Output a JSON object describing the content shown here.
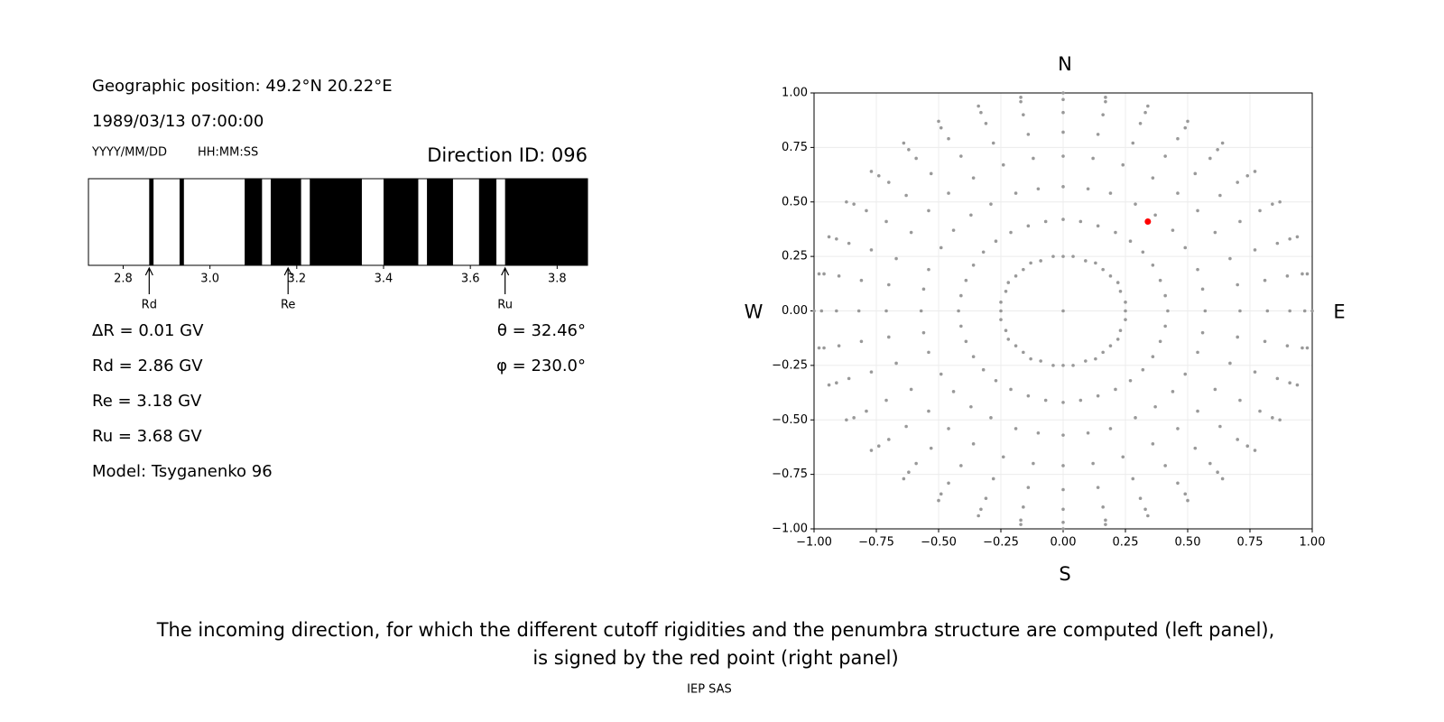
{
  "left_panel": {
    "position": "Geographic position: 49.2°N 20.22°E",
    "datetime": "1989/03/13 07:00:00",
    "date_format": "YYYY/MM/DD",
    "time_format": "HH:MM:SS",
    "direction_id": "Direction ID: 096",
    "lines": [
      "ΔR = 0.01 GV",
      "Rd = 2.86 GV",
      "Re = 3.18 GV",
      "Ru = 3.68 GV",
      "Model: Tsyganenko 96"
    ],
    "angles": [
      "θ = 32.46°",
      "φ = 230.0°"
    ]
  },
  "penumbra": {
    "xlim": [
      2.72,
      3.87
    ],
    "xticks": [
      2.8,
      {
        "value": 3,
        "label": "3.0"
      },
      3.2,
      3.4,
      3.6,
      3.8
    ],
    "color": "#000000",
    "intervals": [
      [
        2.86,
        2.87
      ],
      [
        2.93,
        2.94
      ],
      [
        3.08,
        3.12
      ],
      [
        3.14,
        3.21
      ],
      [
        3.23,
        3.35
      ],
      [
        3.4,
        3.48
      ],
      [
        3.5,
        3.56
      ],
      [
        3.62,
        3.66
      ],
      [
        3.68,
        3.87
      ]
    ],
    "markers": [
      {
        "label": "Rd",
        "value": 2.86
      },
      {
        "label": "Re",
        "value": 3.18
      },
      {
        "label": "Ru",
        "value": 3.68
      }
    ]
  },
  "chart_data": {
    "type": "scatter",
    "xlim": [
      -1,
      1
    ],
    "ylim": [
      -1,
      1
    ],
    "grid": true,
    "color": "#999999",
    "xticks": [
      {
        "value": -1,
        "label": "−1.00"
      },
      {
        "value": -0.75,
        "label": "−0.75"
      },
      {
        "value": -0.5,
        "label": "−0.50"
      },
      {
        "value": -0.25,
        "label": "−0.25"
      },
      {
        "value": 0,
        "label": "0.00"
      },
      {
        "value": 0.25,
        "label": "0.25"
      },
      {
        "value": 0.5,
        "label": "0.50"
      },
      {
        "value": 0.75,
        "label": "0.75"
      },
      {
        "value": 1,
        "label": "1.00"
      }
    ],
    "yticks": [
      {
        "value": -1,
        "label": "−1.00"
      },
      {
        "value": -0.75,
        "label": "−0.75"
      },
      {
        "value": -0.5,
        "label": "−0.50"
      },
      {
        "value": -0.25,
        "label": "−0.25"
      },
      {
        "value": 0,
        "label": "0.00"
      },
      {
        "value": 0.25,
        "label": "0.25"
      },
      {
        "value": 0.5,
        "label": "0.50"
      },
      {
        "value": 0.75,
        "label": "0.75"
      },
      {
        "value": 1,
        "label": "1.00"
      }
    ],
    "compass": {
      "north": "N",
      "south": "S",
      "west": "W",
      "east": "E"
    },
    "highlight": {
      "x": 0.34,
      "y": 0.41,
      "color": "#ff0000"
    },
    "points": [
      [
        0,
        0
      ],
      [
        0.25,
        0
      ],
      [
        0.25,
        0.04
      ],
      [
        0.23,
        0.09
      ],
      [
        0.22,
        0.13
      ],
      [
        0.19,
        0.16
      ],
      [
        0.16,
        0.19
      ],
      [
        0.13,
        0.22
      ],
      [
        0.09,
        0.23
      ],
      [
        0.04,
        0.25
      ],
      [
        0,
        0.25
      ],
      [
        -0.04,
        0.25
      ],
      [
        -0.09,
        0.23
      ],
      [
        -0.13,
        0.22
      ],
      [
        -0.16,
        0.19
      ],
      [
        -0.19,
        0.16
      ],
      [
        -0.22,
        0.13
      ],
      [
        -0.23,
        0.09
      ],
      [
        -0.25,
        0.04
      ],
      [
        -0.25,
        0
      ],
      [
        -0.25,
        -0.04
      ],
      [
        -0.23,
        -0.09
      ],
      [
        -0.22,
        -0.13
      ],
      [
        -0.19,
        -0.16
      ],
      [
        -0.16,
        -0.19
      ],
      [
        -0.13,
        -0.22
      ],
      [
        -0.09,
        -0.23
      ],
      [
        -0.04,
        -0.25
      ],
      [
        0,
        -0.25
      ],
      [
        0.04,
        -0.25
      ],
      [
        0.09,
        -0.23
      ],
      [
        0.13,
        -0.22
      ],
      [
        0.16,
        -0.19
      ],
      [
        0.19,
        -0.16
      ],
      [
        0.22,
        -0.13
      ],
      [
        0.23,
        -0.09
      ],
      [
        0.25,
        -0.04
      ],
      [
        0.42,
        0
      ],
      [
        0.41,
        0.07
      ],
      [
        0.39,
        0.14
      ],
      [
        0.36,
        0.21
      ],
      [
        0.32,
        0.27
      ],
      [
        0.27,
        0.32
      ],
      [
        0.21,
        0.36
      ],
      [
        0.14,
        0.39
      ],
      [
        0.07,
        0.41
      ],
      [
        0,
        0.42
      ],
      [
        -0.07,
        0.41
      ],
      [
        -0.14,
        0.39
      ],
      [
        -0.21,
        0.36
      ],
      [
        -0.27,
        0.32
      ],
      [
        -0.32,
        0.27
      ],
      [
        -0.36,
        0.21
      ],
      [
        -0.39,
        0.14
      ],
      [
        -0.41,
        0.07
      ],
      [
        -0.42,
        0
      ],
      [
        -0.41,
        -0.07
      ],
      [
        -0.39,
        -0.14
      ],
      [
        -0.36,
        -0.21
      ],
      [
        -0.32,
        -0.27
      ],
      [
        -0.27,
        -0.32
      ],
      [
        -0.21,
        -0.36
      ],
      [
        -0.14,
        -0.39
      ],
      [
        -0.07,
        -0.41
      ],
      [
        0,
        -0.42
      ],
      [
        0.07,
        -0.41
      ],
      [
        0.14,
        -0.39
      ],
      [
        0.21,
        -0.36
      ],
      [
        0.27,
        -0.32
      ],
      [
        0.32,
        -0.27
      ],
      [
        0.36,
        -0.21
      ],
      [
        0.39,
        -0.14
      ],
      [
        0.41,
        -0.07
      ],
      [
        0.57,
        0
      ],
      [
        0.56,
        0.1
      ],
      [
        0.54,
        0.19
      ],
      [
        0.49,
        0.29
      ],
      [
        0.44,
        0.37
      ],
      [
        0.37,
        0.44
      ],
      [
        0.29,
        0.49
      ],
      [
        0.19,
        0.54
      ],
      [
        0.1,
        0.56
      ],
      [
        0,
        0.57
      ],
      [
        -0.1,
        0.56
      ],
      [
        -0.19,
        0.54
      ],
      [
        -0.29,
        0.49
      ],
      [
        -0.37,
        0.44
      ],
      [
        -0.44,
        0.37
      ],
      [
        -0.49,
        0.29
      ],
      [
        -0.54,
        0.19
      ],
      [
        -0.56,
        0.1
      ],
      [
        -0.57,
        0
      ],
      [
        -0.56,
        -0.1
      ],
      [
        -0.54,
        -0.19
      ],
      [
        -0.49,
        -0.29
      ],
      [
        -0.44,
        -0.37
      ],
      [
        -0.37,
        -0.44
      ],
      [
        -0.29,
        -0.49
      ],
      [
        -0.19,
        -0.54
      ],
      [
        -0.1,
        -0.56
      ],
      [
        0,
        -0.57
      ],
      [
        0.1,
        -0.56
      ],
      [
        0.19,
        -0.54
      ],
      [
        0.29,
        -0.49
      ],
      [
        0.37,
        -0.44
      ],
      [
        0.44,
        -0.37
      ],
      [
        0.49,
        -0.29
      ],
      [
        0.54,
        -0.19
      ],
      [
        0.56,
        -0.1
      ],
      [
        0.71,
        0
      ],
      [
        0.7,
        0.12
      ],
      [
        0.67,
        0.24
      ],
      [
        0.61,
        0.36
      ],
      [
        0.54,
        0.46
      ],
      [
        0.46,
        0.54
      ],
      [
        0.36,
        0.61
      ],
      [
        0.24,
        0.67
      ],
      [
        0.12,
        0.7
      ],
      [
        0,
        0.71
      ],
      [
        -0.12,
        0.7
      ],
      [
        -0.24,
        0.67
      ],
      [
        -0.36,
        0.61
      ],
      [
        -0.46,
        0.54
      ],
      [
        -0.54,
        0.46
      ],
      [
        -0.61,
        0.36
      ],
      [
        -0.67,
        0.24
      ],
      [
        -0.7,
        0.12
      ],
      [
        -0.71,
        0
      ],
      [
        -0.7,
        -0.12
      ],
      [
        -0.67,
        -0.24
      ],
      [
        -0.61,
        -0.36
      ],
      [
        -0.54,
        -0.46
      ],
      [
        -0.46,
        -0.54
      ],
      [
        -0.36,
        -0.61
      ],
      [
        -0.24,
        -0.67
      ],
      [
        -0.12,
        -0.7
      ],
      [
        0,
        -0.71
      ],
      [
        0.12,
        -0.7
      ],
      [
        0.24,
        -0.67
      ],
      [
        0.36,
        -0.61
      ],
      [
        0.46,
        -0.54
      ],
      [
        0.54,
        -0.46
      ],
      [
        0.61,
        -0.36
      ],
      [
        0.67,
        -0.24
      ],
      [
        0.7,
        -0.12
      ],
      [
        0.82,
        0
      ],
      [
        0.81,
        0.14
      ],
      [
        0.77,
        0.28
      ],
      [
        0.71,
        0.41
      ],
      [
        0.63,
        0.53
      ],
      [
        0.53,
        0.63
      ],
      [
        0.41,
        0.71
      ],
      [
        0.28,
        0.77
      ],
      [
        0.14,
        0.81
      ],
      [
        0,
        0.82
      ],
      [
        -0.14,
        0.81
      ],
      [
        -0.28,
        0.77
      ],
      [
        -0.41,
        0.71
      ],
      [
        -0.53,
        0.63
      ],
      [
        -0.63,
        0.53
      ],
      [
        -0.71,
        0.41
      ],
      [
        -0.77,
        0.28
      ],
      [
        -0.81,
        0.14
      ],
      [
        -0.82,
        0
      ],
      [
        -0.81,
        -0.14
      ],
      [
        -0.77,
        -0.28
      ],
      [
        -0.71,
        -0.41
      ],
      [
        -0.63,
        -0.53
      ],
      [
        -0.53,
        -0.63
      ],
      [
        -0.41,
        -0.71
      ],
      [
        -0.28,
        -0.77
      ],
      [
        -0.14,
        -0.81
      ],
      [
        0,
        -0.82
      ],
      [
        0.14,
        -0.81
      ],
      [
        0.28,
        -0.77
      ],
      [
        0.41,
        -0.71
      ],
      [
        0.53,
        -0.63
      ],
      [
        0.63,
        -0.53
      ],
      [
        0.71,
        -0.41
      ],
      [
        0.77,
        -0.28
      ],
      [
        0.81,
        -0.14
      ],
      [
        0.91,
        0
      ],
      [
        0.9,
        0.16
      ],
      [
        0.86,
        0.31
      ],
      [
        0.79,
        0.46
      ],
      [
        0.7,
        0.59
      ],
      [
        0.59,
        0.7
      ],
      [
        0.46,
        0.79
      ],
      [
        0.31,
        0.86
      ],
      [
        0.16,
        0.9
      ],
      [
        0,
        0.91
      ],
      [
        -0.16,
        0.9
      ],
      [
        -0.31,
        0.86
      ],
      [
        -0.46,
        0.79
      ],
      [
        -0.59,
        0.7
      ],
      [
        -0.7,
        0.59
      ],
      [
        -0.79,
        0.46
      ],
      [
        -0.86,
        0.31
      ],
      [
        -0.9,
        0.16
      ],
      [
        -0.91,
        0
      ],
      [
        -0.9,
        -0.16
      ],
      [
        -0.86,
        -0.31
      ],
      [
        -0.79,
        -0.46
      ],
      [
        -0.7,
        -0.59
      ],
      [
        -0.59,
        -0.7
      ],
      [
        -0.46,
        -0.79
      ],
      [
        -0.31,
        -0.86
      ],
      [
        -0.16,
        -0.9
      ],
      [
        0,
        -0.91
      ],
      [
        0.16,
        -0.9
      ],
      [
        0.31,
        -0.86
      ],
      [
        0.46,
        -0.79
      ],
      [
        0.59,
        -0.7
      ],
      [
        0.7,
        -0.59
      ],
      [
        0.79,
        -0.46
      ],
      [
        0.86,
        -0.31
      ],
      [
        0.9,
        -0.16
      ],
      [
        0.97,
        0
      ],
      [
        0.96,
        0.17
      ],
      [
        0.91,
        0.33
      ],
      [
        0.84,
        0.49
      ],
      [
        0.74,
        0.62
      ],
      [
        0.62,
        0.74
      ],
      [
        0.49,
        0.84
      ],
      [
        0.33,
        0.91
      ],
      [
        0.17,
        0.96
      ],
      [
        0,
        0.97
      ],
      [
        -0.17,
        0.96
      ],
      [
        -0.33,
        0.91
      ],
      [
        -0.49,
        0.84
      ],
      [
        -0.62,
        0.74
      ],
      [
        -0.74,
        0.62
      ],
      [
        -0.84,
        0.49
      ],
      [
        -0.91,
        0.33
      ],
      [
        -0.96,
        0.17
      ],
      [
        -0.97,
        0
      ],
      [
        -0.96,
        -0.17
      ],
      [
        -0.91,
        -0.33
      ],
      [
        -0.84,
        -0.49
      ],
      [
        -0.74,
        -0.62
      ],
      [
        -0.62,
        -0.74
      ],
      [
        -0.49,
        -0.84
      ],
      [
        -0.33,
        -0.91
      ],
      [
        -0.17,
        -0.96
      ],
      [
        0,
        -0.97
      ],
      [
        0.17,
        -0.96
      ],
      [
        0.33,
        -0.91
      ],
      [
        0.49,
        -0.84
      ],
      [
        0.62,
        -0.74
      ],
      [
        0.74,
        -0.62
      ],
      [
        0.84,
        -0.49
      ],
      [
        0.91,
        -0.33
      ],
      [
        0.96,
        -0.17
      ],
      [
        1,
        0
      ],
      [
        0.98,
        0.17
      ],
      [
        0.94,
        0.34
      ],
      [
        0.87,
        0.5
      ],
      [
        0.77,
        0.64
      ],
      [
        0.64,
        0.77
      ],
      [
        0.5,
        0.87
      ],
      [
        0.34,
        0.94
      ],
      [
        0.17,
        0.98
      ],
      [
        0,
        1
      ],
      [
        -0.17,
        0.98
      ],
      [
        -0.34,
        0.94
      ],
      [
        -0.5,
        0.87
      ],
      [
        -0.64,
        0.77
      ],
      [
        -0.77,
        0.64
      ],
      [
        -0.87,
        0.5
      ],
      [
        -0.94,
        0.34
      ],
      [
        -0.98,
        0.17
      ],
      [
        -1,
        0
      ],
      [
        -0.98,
        -0.17
      ],
      [
        -0.94,
        -0.34
      ],
      [
        -0.87,
        -0.5
      ],
      [
        -0.77,
        -0.64
      ],
      [
        -0.64,
        -0.77
      ],
      [
        -0.5,
        -0.87
      ],
      [
        -0.34,
        -0.94
      ],
      [
        -0.17,
        -0.98
      ],
      [
        0,
        -1
      ],
      [
        0.17,
        -0.98
      ],
      [
        0.34,
        -0.94
      ],
      [
        0.5,
        -0.87
      ],
      [
        0.64,
        -0.77
      ],
      [
        0.77,
        -0.64
      ],
      [
        0.87,
        -0.5
      ],
      [
        0.94,
        -0.34
      ],
      [
        0.98,
        -0.17
      ]
    ]
  },
  "caption": {
    "lines": [
      "The incoming direction, for which the different cutoff rigidities and the penumbra structure are computed (left panel),",
      "is signed by the red point (right panel)"
    ],
    "footer": "IEP SAS"
  }
}
